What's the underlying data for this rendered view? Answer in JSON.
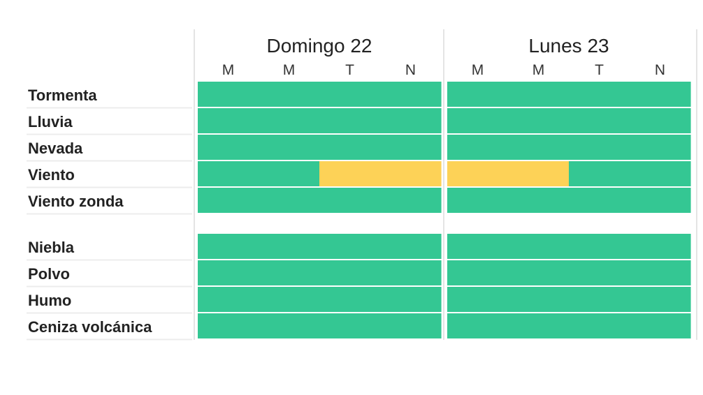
{
  "chart_data": {
    "type": "heatmap",
    "days": [
      {
        "title": "Domingo 22",
        "slots": [
          "M",
          "M",
          "T",
          "N"
        ]
      },
      {
        "title": "Lunes 23",
        "slots": [
          "M",
          "M",
          "T",
          "N"
        ]
      }
    ],
    "groups": [
      {
        "rows": [
          {
            "label": "Tormenta",
            "levels": [
              [
                0,
                0,
                0,
                0
              ],
              [
                0,
                0,
                0,
                0
              ]
            ]
          },
          {
            "label": "Lluvia",
            "levels": [
              [
                0,
                0,
                0,
                0
              ],
              [
                0,
                0,
                0,
                0
              ]
            ]
          },
          {
            "label": "Nevada",
            "levels": [
              [
                0,
                0,
                0,
                0
              ],
              [
                0,
                0,
                0,
                0
              ]
            ]
          },
          {
            "label": "Viento",
            "levels": [
              [
                0,
                0,
                1,
                1
              ],
              [
                1,
                1,
                0,
                0
              ]
            ]
          },
          {
            "label": "Viento zonda",
            "levels": [
              [
                0,
                0,
                0,
                0
              ],
              [
                0,
                0,
                0,
                0
              ]
            ]
          }
        ]
      },
      {
        "rows": [
          {
            "label": "Niebla",
            "levels": [
              [
                0,
                0,
                0,
                0
              ],
              [
                0,
                0,
                0,
                0
              ]
            ]
          },
          {
            "label": "Polvo",
            "levels": [
              [
                0,
                0,
                0,
                0
              ],
              [
                0,
                0,
                0,
                0
              ]
            ]
          },
          {
            "label": "Humo",
            "levels": [
              [
                0,
                0,
                0,
                0
              ],
              [
                0,
                0,
                0,
                0
              ]
            ]
          },
          {
            "label": "Ceniza volcánica",
            "levels": [
              [
                0,
                0,
                0,
                0
              ],
              [
                0,
                0,
                0,
                0
              ]
            ]
          }
        ]
      }
    ],
    "level_colors": [
      "#34c793",
      "#fdd257"
    ],
    "grid": true,
    "legend": "none"
  },
  "colors": {
    "row_divider": "#ececec",
    "day_divider": "#e4e4e4"
  }
}
